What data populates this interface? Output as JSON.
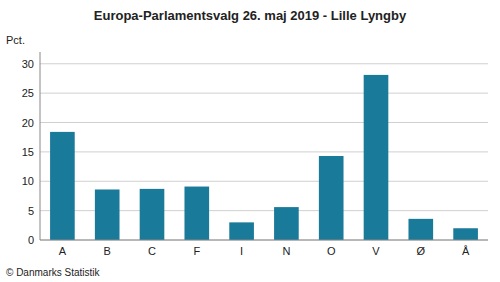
{
  "chart_data": {
    "type": "bar",
    "title": "Europa-Parlamentsvalg 26. maj 2019 - Lille Lyngby",
    "y_label": "Pct.",
    "footer": "© Danmarks Statistik",
    "categories": [
      "A",
      "B",
      "C",
      "F",
      "I",
      "N",
      "O",
      "V",
      "Ø",
      "Å"
    ],
    "values": [
      18.4,
      8.6,
      8.7,
      9.1,
      3.0,
      5.6,
      14.3,
      28.1,
      3.6,
      2.0
    ],
    "color": "#1a7a9a",
    "ylim": [
      0,
      32
    ],
    "yticks": [
      0,
      5,
      10,
      15,
      20,
      25,
      30
    ],
    "grid": true
  }
}
